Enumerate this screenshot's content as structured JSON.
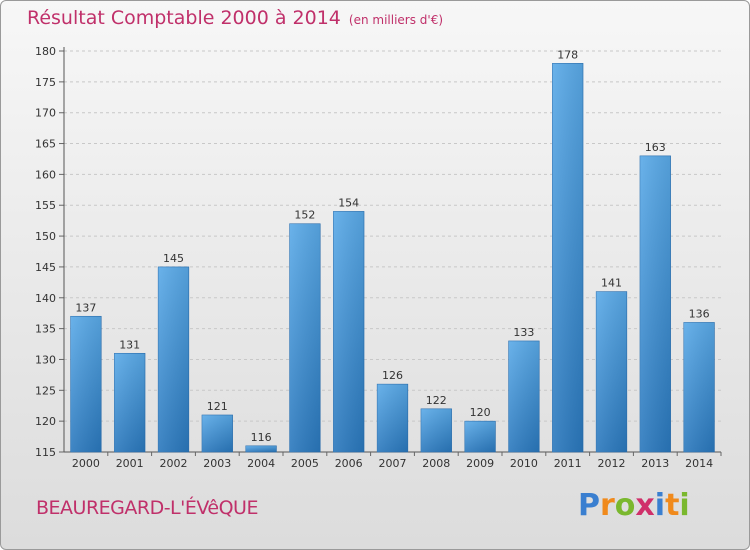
{
  "chart_data": {
    "type": "bar",
    "title": "Résultat Comptable 2000 à 2014",
    "unit_label": "(en milliers d'€)",
    "categories": [
      "2000",
      "2001",
      "2002",
      "2003",
      "2004",
      "2005",
      "2006",
      "2007",
      "2008",
      "2009",
      "2010",
      "2011",
      "2012",
      "2013",
      "2014"
    ],
    "values": [
      137,
      131,
      145,
      121,
      116,
      152,
      154,
      126,
      122,
      120,
      133,
      178,
      141,
      163,
      136
    ],
    "ylim": [
      115,
      180
    ],
    "yticks": [
      115,
      120,
      125,
      130,
      135,
      140,
      145,
      150,
      155,
      160,
      165,
      170,
      175,
      180
    ],
    "grid": true,
    "bar_color": "#3d8fd6"
  },
  "commune": "BEAUREGARD-L'ÉVêQUE",
  "logo": {
    "letters": [
      "P",
      "r",
      "o",
      "x",
      "i",
      "t",
      "i"
    ],
    "colors": [
      "#3a7fd0",
      "#f08a1c",
      "#7ab82e",
      "#d0306a",
      "#3a7fd0",
      "#f08a1c",
      "#7ab82e"
    ]
  }
}
